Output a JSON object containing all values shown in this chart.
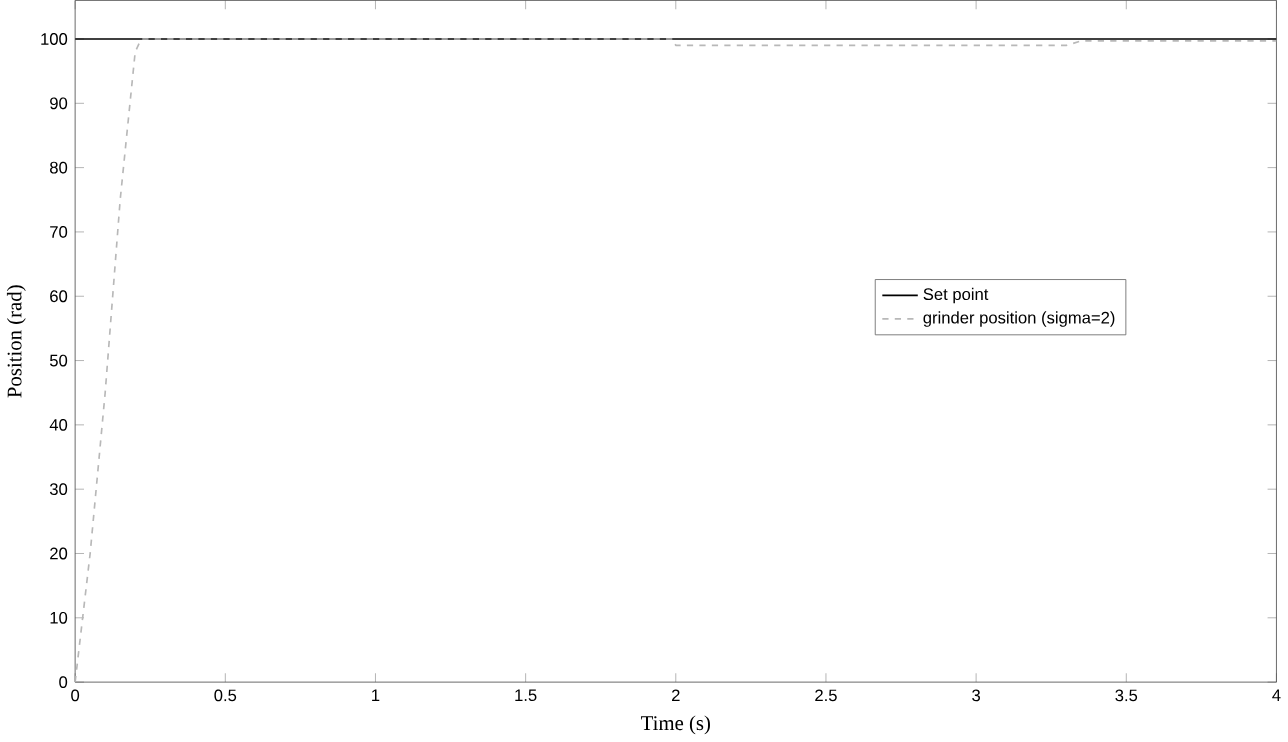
{
  "chart_data": {
    "type": "line",
    "xlabel": "Time (s)",
    "ylabel": "Position (rad)",
    "xlim": [
      0,
      4
    ],
    "ylim": [
      0,
      106
    ],
    "xticks": [
      0,
      0.5,
      1,
      1.5,
      2,
      2.5,
      3,
      3.5,
      4
    ],
    "yticks": [
      0,
      10,
      20,
      30,
      40,
      50,
      60,
      70,
      80,
      90,
      100
    ],
    "legend": "right",
    "grid": false,
    "series": [
      {
        "name": "Set point",
        "color": "#000000",
        "line_style": "solid",
        "x": [
          0,
          4
        ],
        "values": [
          100,
          100
        ]
      },
      {
        "name": "grinder position (sigma=2)",
        "color": "#b8b8b8",
        "line_style": "dashed",
        "x": [
          0,
          0.05,
          0.1,
          0.15,
          0.2,
          0.22,
          1.99,
          2.0,
          3.3,
          3.35,
          4.0
        ],
        "values": [
          0,
          20,
          45,
          75,
          98,
          100,
          100,
          99,
          99,
          99.7,
          99.7
        ]
      }
    ]
  }
}
